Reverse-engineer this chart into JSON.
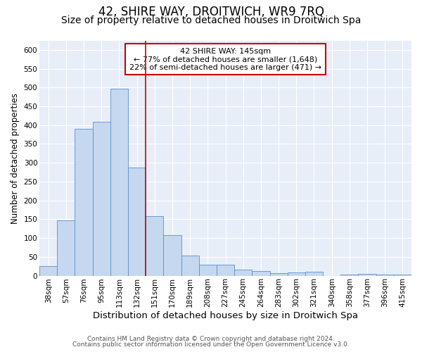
{
  "title": "42, SHIRE WAY, DROITWICH, WR9 7RQ",
  "subtitle": "Size of property relative to detached houses in Droitwich Spa",
  "xlabel": "Distribution of detached houses by size in Droitwich Spa",
  "ylabel": "Number of detached properties",
  "categories": [
    "38sqm",
    "57sqm",
    "76sqm",
    "95sqm",
    "113sqm",
    "132sqm",
    "151sqm",
    "170sqm",
    "189sqm",
    "208sqm",
    "227sqm",
    "245sqm",
    "264sqm",
    "283sqm",
    "302sqm",
    "321sqm",
    "340sqm",
    "358sqm",
    "377sqm",
    "396sqm",
    "415sqm"
  ],
  "values": [
    25,
    147,
    390,
    408,
    497,
    288,
    158,
    108,
    53,
    30,
    30,
    16,
    12,
    7,
    9,
    10,
    0,
    2,
    4,
    2,
    3
  ],
  "bar_color": "#c5d8f0",
  "bar_edge_color": "#5b8fc9",
  "bar_width": 1.0,
  "vline_x": 5.5,
  "vline_color": "#cc0000",
  "annotation_text": "42 SHIRE WAY: 145sqm\n← 77% of detached houses are smaller (1,648)\n22% of semi-detached houses are larger (471) →",
  "annotation_box_color": "#ffffff",
  "annotation_box_edge": "#cc0000",
  "ylim": [
    0,
    625
  ],
  "yticks": [
    0,
    50,
    100,
    150,
    200,
    250,
    300,
    350,
    400,
    450,
    500,
    550,
    600
  ],
  "background_color": "#e8eef8",
  "grid_color": "#ffffff",
  "footer1": "Contains HM Land Registry data © Crown copyright and database right 2024.",
  "footer2": "Contains public sector information licensed under the Open Government Licence v3.0.",
  "title_fontsize": 12,
  "subtitle_fontsize": 10,
  "xlabel_fontsize": 9.5,
  "ylabel_fontsize": 8.5,
  "tick_fontsize": 7.5,
  "annotation_fontsize": 8,
  "footer_fontsize": 6.5
}
